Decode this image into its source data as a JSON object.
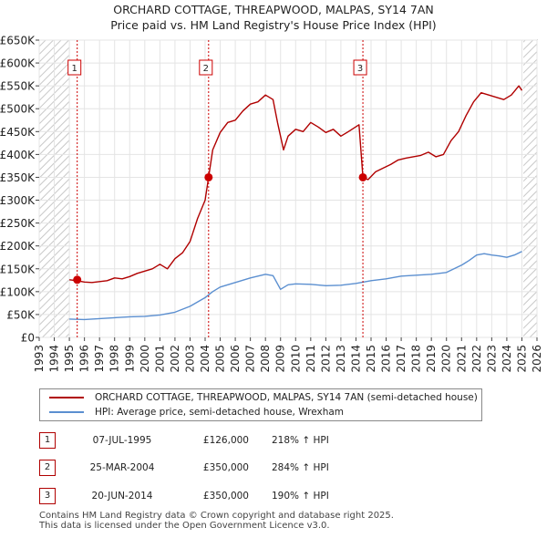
{
  "title_line1": "ORCHARD COTTAGE, THREAPWOOD, MALPAS, SY14 7AN",
  "title_line2": "Price paid vs. HM Land Registry's House Price Index (HPI)",
  "colors": {
    "property": "#b00000",
    "hpi": "#5b8fd0",
    "shade": "#dde6f3",
    "marker": "#cc0000"
  },
  "legend": {
    "property_label": "ORCHARD COTTAGE, THREAPWOOD, MALPAS, SY14 7AN (semi-detached house)",
    "hpi_label": "HPI: Average price, semi-detached house, Wrexham"
  },
  "sales": [
    {
      "num": "1",
      "date": "07-JUL-1995",
      "price": "£126,000",
      "hpi": "218% ↑ HPI"
    },
    {
      "num": "2",
      "date": "25-MAR-2004",
      "price": "£350,000",
      "hpi": "284% ↑ HPI"
    },
    {
      "num": "3",
      "date": "20-JUN-2014",
      "price": "£350,000",
      "hpi": "190% ↑ HPI"
    }
  ],
  "footer": {
    "line1": "Contains HM Land Registry data © Crown copyright and database right 2025.",
    "line2": "This data is licensed under the Open Government Licence v3.0."
  },
  "chart_data": {
    "type": "line",
    "title": "ORCHARD COTTAGE, THREAPWOOD, MALPAS, SY14 7AN",
    "subtitle": "Price paid vs. HM Land Registry's House Price Index (HPI)",
    "xlabel": "",
    "ylabel": "",
    "xlim": [
      1993,
      2026
    ],
    "ylim": [
      0,
      650000
    ],
    "x_ticks": [
      1993,
      1994,
      1995,
      1996,
      1997,
      1998,
      1999,
      2000,
      2001,
      2002,
      2003,
      2004,
      2005,
      2006,
      2007,
      2008,
      2009,
      2010,
      2011,
      2012,
      2013,
      2014,
      2015,
      2016,
      2017,
      2018,
      2019,
      2020,
      2021,
      2022,
      2023,
      2024,
      2025,
      2026
    ],
    "y_ticks": [
      0,
      50000,
      100000,
      150000,
      200000,
      250000,
      300000,
      350000,
      400000,
      450000,
      500000,
      550000,
      600000,
      650000
    ],
    "y_tick_labels": [
      "£0",
      "£50K",
      "£100K",
      "£150K",
      "£200K",
      "£250K",
      "£300K",
      "£350K",
      "£400K",
      "£450K",
      "£500K",
      "£550K",
      "£600K",
      "£650K"
    ],
    "grid": true,
    "hatched_ranges": [
      [
        1993,
        1995
      ],
      [
        2025.1,
        2026
      ]
    ],
    "legend_position": "below",
    "series": [
      {
        "name": "ORCHARD COTTAGE, THREAPWOOD, MALPAS, SY14 7AN (semi-detached house)",
        "x": [
          1995.0,
          1995.5,
          1996,
          1996.5,
          1997,
          1997.5,
          1998,
          1998.5,
          1999,
          1999.5,
          2000,
          2000.5,
          2001,
          2001.5,
          2002,
          2002.5,
          2003,
          2003.5,
          2004.0,
          2004.23,
          2004.5,
          2005,
          2005.5,
          2006,
          2006.5,
          2007,
          2007.5,
          2008,
          2008.5,
          2008.8,
          2009.2,
          2009.5,
          2010,
          2010.5,
          2011,
          2011.5,
          2012,
          2012.5,
          2013,
          2013.5,
          2014.2,
          2014.46,
          2014.8,
          2015.3,
          2015.8,
          2016.3,
          2016.8,
          2017.3,
          2017.8,
          2018.3,
          2018.8,
          2019.3,
          2019.8,
          2020.3,
          2020.8,
          2021.3,
          2021.8,
          2022.3,
          2022.8,
          2023.3,
          2023.8,
          2024.3,
          2024.8,
          2025.0
        ],
        "values": [
          126000,
          124000,
          121000,
          120000,
          122000,
          124000,
          130000,
          128000,
          133000,
          140000,
          145000,
          150000,
          160000,
          150000,
          172000,
          185000,
          210000,
          260000,
          300000,
          350000,
          410000,
          448000,
          470000,
          475000,
          495000,
          510000,
          515000,
          530000,
          520000,
          470000,
          410000,
          440000,
          455000,
          450000,
          470000,
          460000,
          448000,
          455000,
          440000,
          450000,
          465000,
          350000,
          345000,
          362000,
          370000,
          378000,
          388000,
          392000,
          395000,
          398000,
          405000,
          395000,
          400000,
          430000,
          450000,
          485000,
          515000,
          535000,
          530000,
          525000,
          520000,
          530000,
          550000,
          540000
        ]
      },
      {
        "name": "HPI: Average price, semi-detached house, Wrexham",
        "x": [
          1995.0,
          1996,
          1997,
          1998,
          1999,
          2000,
          2001,
          2002,
          2003,
          2004,
          2004.5,
          2005,
          2006,
          2007,
          2008,
          2008.5,
          2009,
          2009.5,
          2010,
          2011,
          2012,
          2013,
          2014,
          2015,
          2016,
          2017,
          2018,
          2019,
          2020,
          2021,
          2021.5,
          2022,
          2022.5,
          2023,
          2023.5,
          2024,
          2024.5,
          2025.0
        ],
        "values": [
          40000,
          39000,
          41000,
          43000,
          45000,
          46000,
          49000,
          55000,
          68000,
          87000,
          100000,
          110000,
          120000,
          130000,
          138000,
          135000,
          105000,
          115000,
          117000,
          116000,
          113000,
          114000,
          118000,
          124000,
          128000,
          134000,
          136000,
          138000,
          142000,
          158000,
          168000,
          180000,
          183000,
          180000,
          178000,
          175000,
          180000,
          188000
        ]
      }
    ],
    "sale_markers": [
      {
        "label": "1",
        "x": 1995.52,
        "y": 126000
      },
      {
        "label": "2",
        "x": 2004.23,
        "y": 350000
      },
      {
        "label": "3",
        "x": 2014.46,
        "y": 350000
      }
    ]
  }
}
